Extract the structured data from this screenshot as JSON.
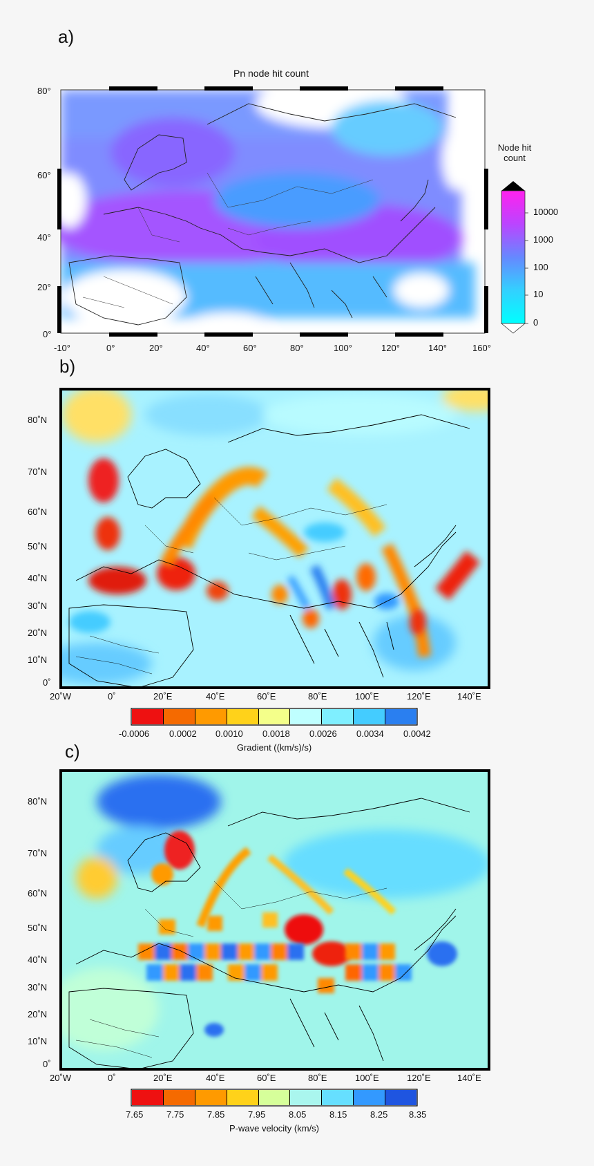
{
  "panel_a": {
    "label": "a)",
    "title": "Pn node hit count",
    "x_ticks": [
      "-10°",
      "0°",
      "20°",
      "40°",
      "60°",
      "80°",
      "100°",
      "120°",
      "140°",
      "160°"
    ],
    "y_ticks": [
      "80°",
      "60°",
      "40°",
      "20°",
      "0°"
    ],
    "colorbar": {
      "title_line1": "Node hit",
      "title_line2": "count",
      "labels": [
        "10000",
        "1000",
        "100",
        "10",
        "0"
      ],
      "colors": [
        "#ff22ee",
        "#bb44ff",
        "#6688ff",
        "#33d0ff",
        "#00ffff"
      ]
    }
  },
  "panel_b": {
    "label": "b)",
    "x_ticks": [
      "20˚W",
      "0˚",
      "20˚E",
      "40˚E",
      "60˚E",
      "80˚E",
      "100˚E",
      "120˚E",
      "140˚E"
    ],
    "y_ticks": [
      "80˚N",
      "70˚N",
      "60˚N",
      "50˚N",
      "40˚N",
      "30˚N",
      "20˚N",
      "10˚N",
      "0˚"
    ],
    "colorbar": {
      "labels": [
        "-0.0006",
        "0.0002",
        "0.0010",
        "0.0018",
        "0.0026",
        "0.0034",
        "0.0042"
      ],
      "title": "Gradient ((km/s)/s)",
      "colors": [
        "#ee1111",
        "#f56a00",
        "#ff9a00",
        "#ffd21a",
        "#f4ff8a",
        "#bfffff",
        "#7fefff",
        "#44ccff",
        "#2a7ff0"
      ]
    }
  },
  "panel_c": {
    "label": "c)",
    "x_ticks": [
      "20˚W",
      "0˚",
      "20˚E",
      "40˚E",
      "60˚E",
      "80˚E",
      "100˚E",
      "120˚E",
      "140˚E"
    ],
    "y_ticks": [
      "80˚N",
      "70˚N",
      "60˚N",
      "50˚N",
      "40˚N",
      "30˚N",
      "20˚N",
      "10˚N",
      "0˚"
    ],
    "colorbar": {
      "labels": [
        "7.65",
        "7.75",
        "7.85",
        "7.95",
        "8.05",
        "8.15",
        "8.25",
        "8.35"
      ],
      "title": "P-wave velocity (km/s)",
      "colors": [
        "#ee1111",
        "#f56a00",
        "#ff9a00",
        "#ffd21a",
        "#d6ff9a",
        "#aaf6ee",
        "#66dfff",
        "#3399ff",
        "#1f55e0"
      ]
    }
  }
}
